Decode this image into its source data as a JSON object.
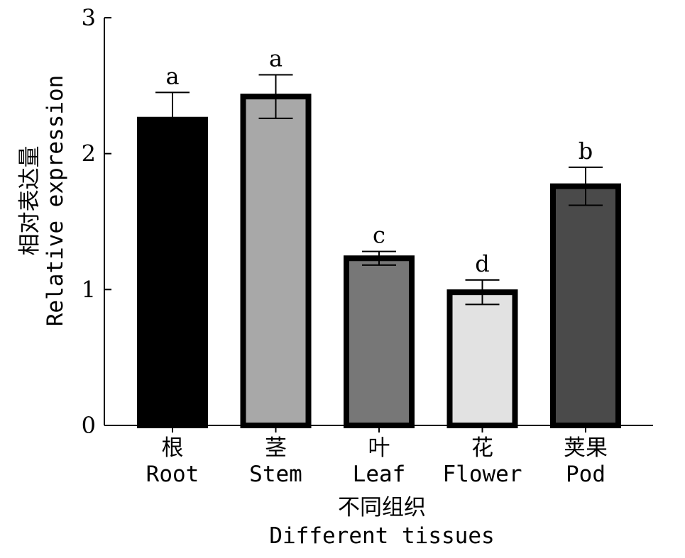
{
  "chart_data": {
    "type": "bar",
    "categories": [
      {
        "zh": "根",
        "en": "Root"
      },
      {
        "zh": "茎",
        "en": "Stem"
      },
      {
        "zh": "叶",
        "en": "Leaf"
      },
      {
        "zh": "花",
        "en": "Flower"
      },
      {
        "zh": "荚果",
        "en": "Pod"
      }
    ],
    "values": [
      2.25,
      2.42,
      1.23,
      0.98,
      1.76
    ],
    "errors": [
      0.2,
      0.16,
      0.05,
      0.09,
      0.14
    ],
    "significance": [
      "a",
      "a",
      "c",
      "d",
      "b"
    ],
    "colors": [
      "#000000",
      "#a8a8a8",
      "#777777",
      "#e2e2e2",
      "#4a4a4a"
    ],
    "ylim": [
      0,
      3
    ],
    "yticks": [
      0,
      1,
      2,
      3
    ],
    "ylabel": {
      "zh": "相对表达量",
      "en": "Relative expression"
    },
    "xlabel": {
      "zh": "不同组织",
      "en": "Different tissues"
    },
    "title": "",
    "grid": false,
    "legend": "none"
  }
}
